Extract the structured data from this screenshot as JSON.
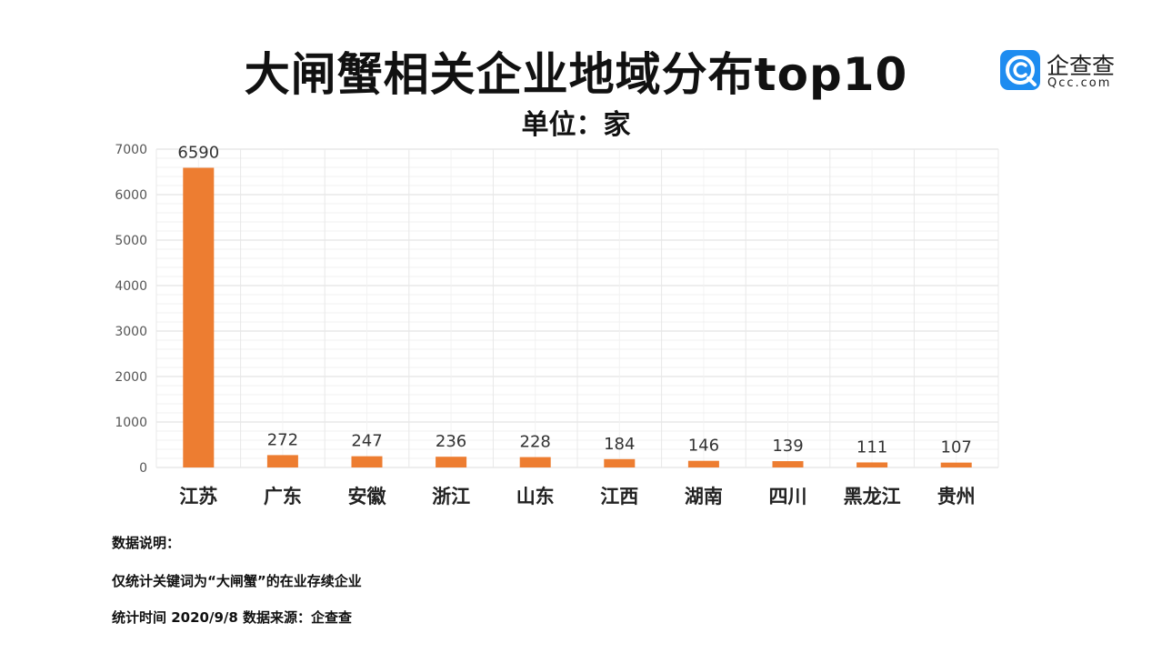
{
  "header": {
    "title": "大闸蟹相关企业地域分布top10",
    "subtitle": "单位：家"
  },
  "logo": {
    "name": "企查查",
    "domain": "Qcc.com",
    "icon": "qcc-logo-icon",
    "color": "#1e8cf0"
  },
  "chart_data": {
    "type": "bar",
    "title": "大闸蟹相关企业地域分布top10",
    "subtitle": "单位：家",
    "categories": [
      "江苏",
      "广东",
      "安徽",
      "浙江",
      "山东",
      "江西",
      "湖南",
      "四川",
      "黑龙江",
      "贵州"
    ],
    "values": [
      6590,
      272,
      247,
      236,
      228,
      184,
      146,
      139,
      111,
      107
    ],
    "data_labels": [
      "6590",
      "272",
      "247",
      "236",
      "228",
      "184",
      "146",
      "139",
      "111",
      "107"
    ],
    "yticks": [
      "0",
      "1000",
      "2000",
      "3000",
      "4000",
      "5000",
      "6000",
      "7000"
    ],
    "ylim": [
      0,
      7000
    ],
    "grid": true,
    "bar_color": "#ed7d31"
  },
  "notes": {
    "heading": "数据说明：",
    "line1": "仅统计关键词为“大闸蟹”的在业存续企业",
    "line2": "统计时间 2020/9/8    数据来源：企查查"
  }
}
